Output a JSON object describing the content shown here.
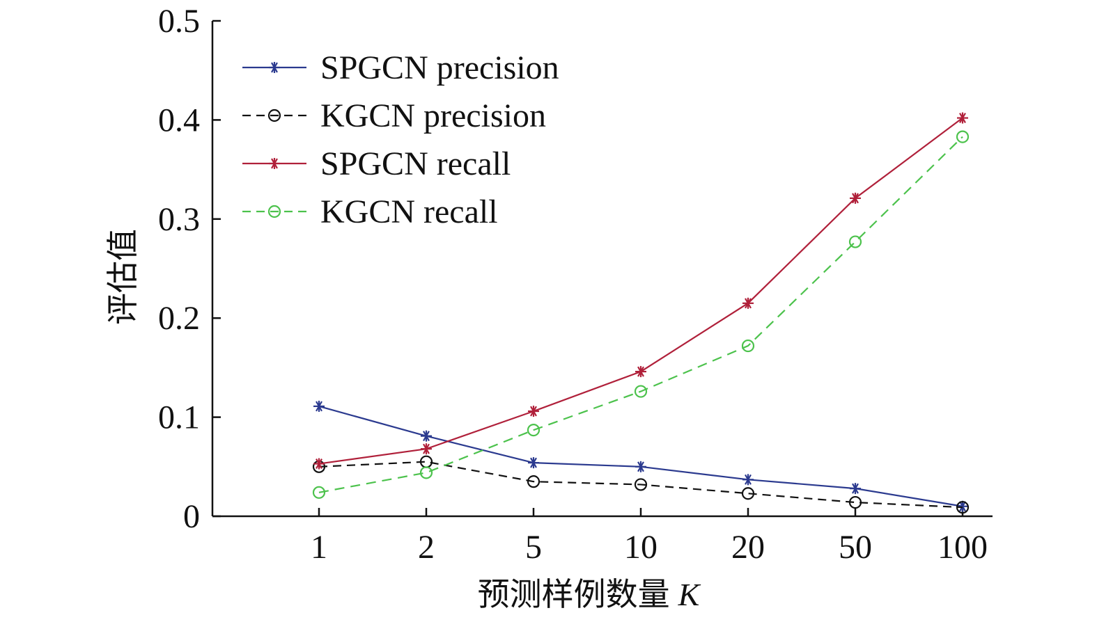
{
  "chart_data": {
    "type": "line",
    "title": "",
    "categories": [
      "1",
      "2",
      "5",
      "10",
      "20",
      "50",
      "100"
    ],
    "xlabel": "预测样例数量",
    "xlabel_var": "K",
    "ylabel": "评估值",
    "ylim": [
      0,
      0.5
    ],
    "yticks": [
      0,
      0.1,
      0.2,
      0.3,
      0.4,
      0.5
    ],
    "ytick_labels": [
      "0",
      "0.1",
      "0.2",
      "0.3",
      "0.4",
      "0.5"
    ],
    "grid": false,
    "legend_position": "top-left",
    "series": [
      {
        "name": "SPGCN precision",
        "color": "#2b3a8f",
        "dashed": false,
        "marker": "star",
        "values": [
          0.111,
          0.081,
          0.054,
          0.05,
          0.037,
          0.028,
          0.01
        ]
      },
      {
        "name": "KGCN precision",
        "color": "#111111",
        "dashed": true,
        "marker": "circle",
        "values": [
          0.05,
          0.055,
          0.035,
          0.032,
          0.023,
          0.014,
          0.009
        ]
      },
      {
        "name": "SPGCN recall",
        "color": "#b0203a",
        "dashed": false,
        "marker": "star",
        "values": [
          0.053,
          0.068,
          0.106,
          0.146,
          0.215,
          0.321,
          0.402
        ]
      },
      {
        "name": "KGCN recall",
        "color": "#4cc24c",
        "dashed": true,
        "marker": "circle",
        "values": [
          0.024,
          0.044,
          0.087,
          0.126,
          0.172,
          0.277,
          0.383
        ]
      }
    ]
  }
}
